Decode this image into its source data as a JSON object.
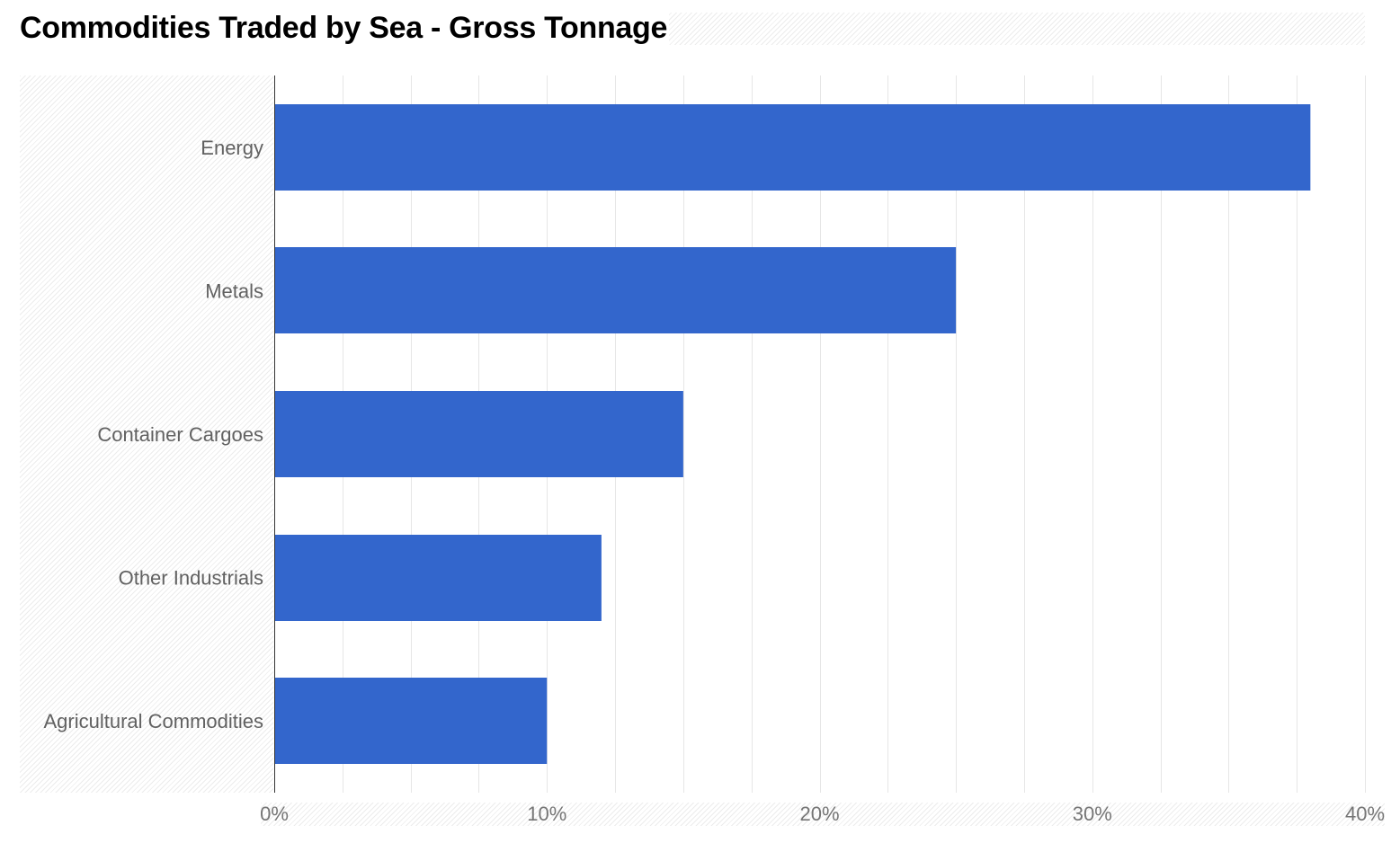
{
  "chart_data": {
    "type": "bar",
    "orientation": "horizontal",
    "title": "Commodities Traded by Sea - Gross Tonnage",
    "categories": [
      "Energy",
      "Metals",
      "Container Cargoes",
      "Other Industrials",
      "Agricultural Commodities"
    ],
    "values": [
      38,
      25,
      15,
      12,
      10
    ],
    "value_unit": "%",
    "xlim": [
      0,
      40
    ],
    "x_ticks": [
      "0%",
      "10%",
      "20%",
      "30%",
      "40%"
    ],
    "xlabel": "",
    "ylabel": "",
    "grid": true,
    "legend": "none",
    "bar_color": "#3366cc",
    "gridline_color": "#e6e6e6",
    "axis_color": "#333333"
  }
}
